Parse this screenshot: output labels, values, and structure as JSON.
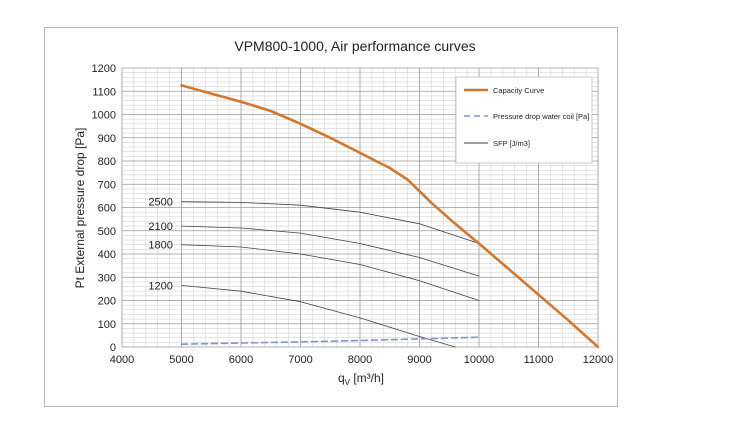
{
  "chart_data": {
    "type": "line",
    "title": "VPM800-1000, Air performance curves",
    "xlabel": {
      "main": "q",
      "sub": "V",
      "unit": " [m³/h]"
    },
    "ylabel": "Pt External pressure drop [Pa]",
    "xlim": [
      4000,
      12000
    ],
    "ylim": [
      0,
      1200
    ],
    "x_ticks": [
      "4000",
      "5000",
      "6000",
      "7000",
      "8000",
      "9000",
      "10000",
      "11000",
      "12000"
    ],
    "y_ticks": [
      "0",
      "100",
      "200",
      "300",
      "400",
      "500",
      "600",
      "700",
      "800",
      "900",
      "1000",
      "1100",
      "1200"
    ],
    "grid": true,
    "legend_position": "top-right",
    "series": [
      {
        "name": "Capacity Curve",
        "color": "#d2772e",
        "style": "solid",
        "x": [
          5000,
          5500,
          6000,
          6500,
          7000,
          7500,
          8000,
          8500,
          8800,
          9200,
          9600,
          10000,
          10500,
          11000,
          11500,
          12000
        ],
        "y": [
          1125,
          1090,
          1055,
          1015,
          960,
          900,
          835,
          770,
          720,
          620,
          530,
          445,
          335,
          225,
          115,
          0
        ]
      },
      {
        "name": "Pressure drop water coil [Pa]",
        "color": "#7f95c7",
        "style": "dashed",
        "x": [
          5000,
          6000,
          7000,
          8000,
          9000,
          10000
        ],
        "y": [
          12,
          17,
          22,
          28,
          35,
          42
        ]
      },
      {
        "name": "SFP [J/m3]",
        "color": "#444444",
        "style": "solid",
        "width": 0.8,
        "x": [
          5000,
          6000,
          7000,
          8000,
          9000,
          10000
        ],
        "y": [
          625,
          622,
          610,
          580,
          530,
          445
        ]
      },
      {
        "name": "",
        "color": "#444444",
        "style": "solid",
        "width": 0.8,
        "x": [
          5000,
          6000,
          7000,
          8000,
          9000,
          10000
        ],
        "y": [
          520,
          512,
          490,
          445,
          385,
          305
        ]
      },
      {
        "name": "",
        "color": "#444444",
        "style": "solid",
        "width": 0.8,
        "x": [
          5000,
          6000,
          7000,
          8000,
          9000,
          10000
        ],
        "y": [
          440,
          430,
          400,
          355,
          285,
          200
        ]
      },
      {
        "name": "",
        "color": "#444444",
        "style": "solid",
        "width": 0.8,
        "x": [
          5000,
          6000,
          7000,
          8000,
          9000,
          9600
        ],
        "y": [
          265,
          240,
          195,
          125,
          45,
          0
        ]
      }
    ],
    "annotations": [
      {
        "text": "2500",
        "x": 4650,
        "y": 625
      },
      {
        "text": "2100",
        "x": 4650,
        "y": 520
      },
      {
        "text": "1800",
        "x": 4650,
        "y": 440
      },
      {
        "text": "1200",
        "x": 4650,
        "y": 265
      }
    ]
  }
}
